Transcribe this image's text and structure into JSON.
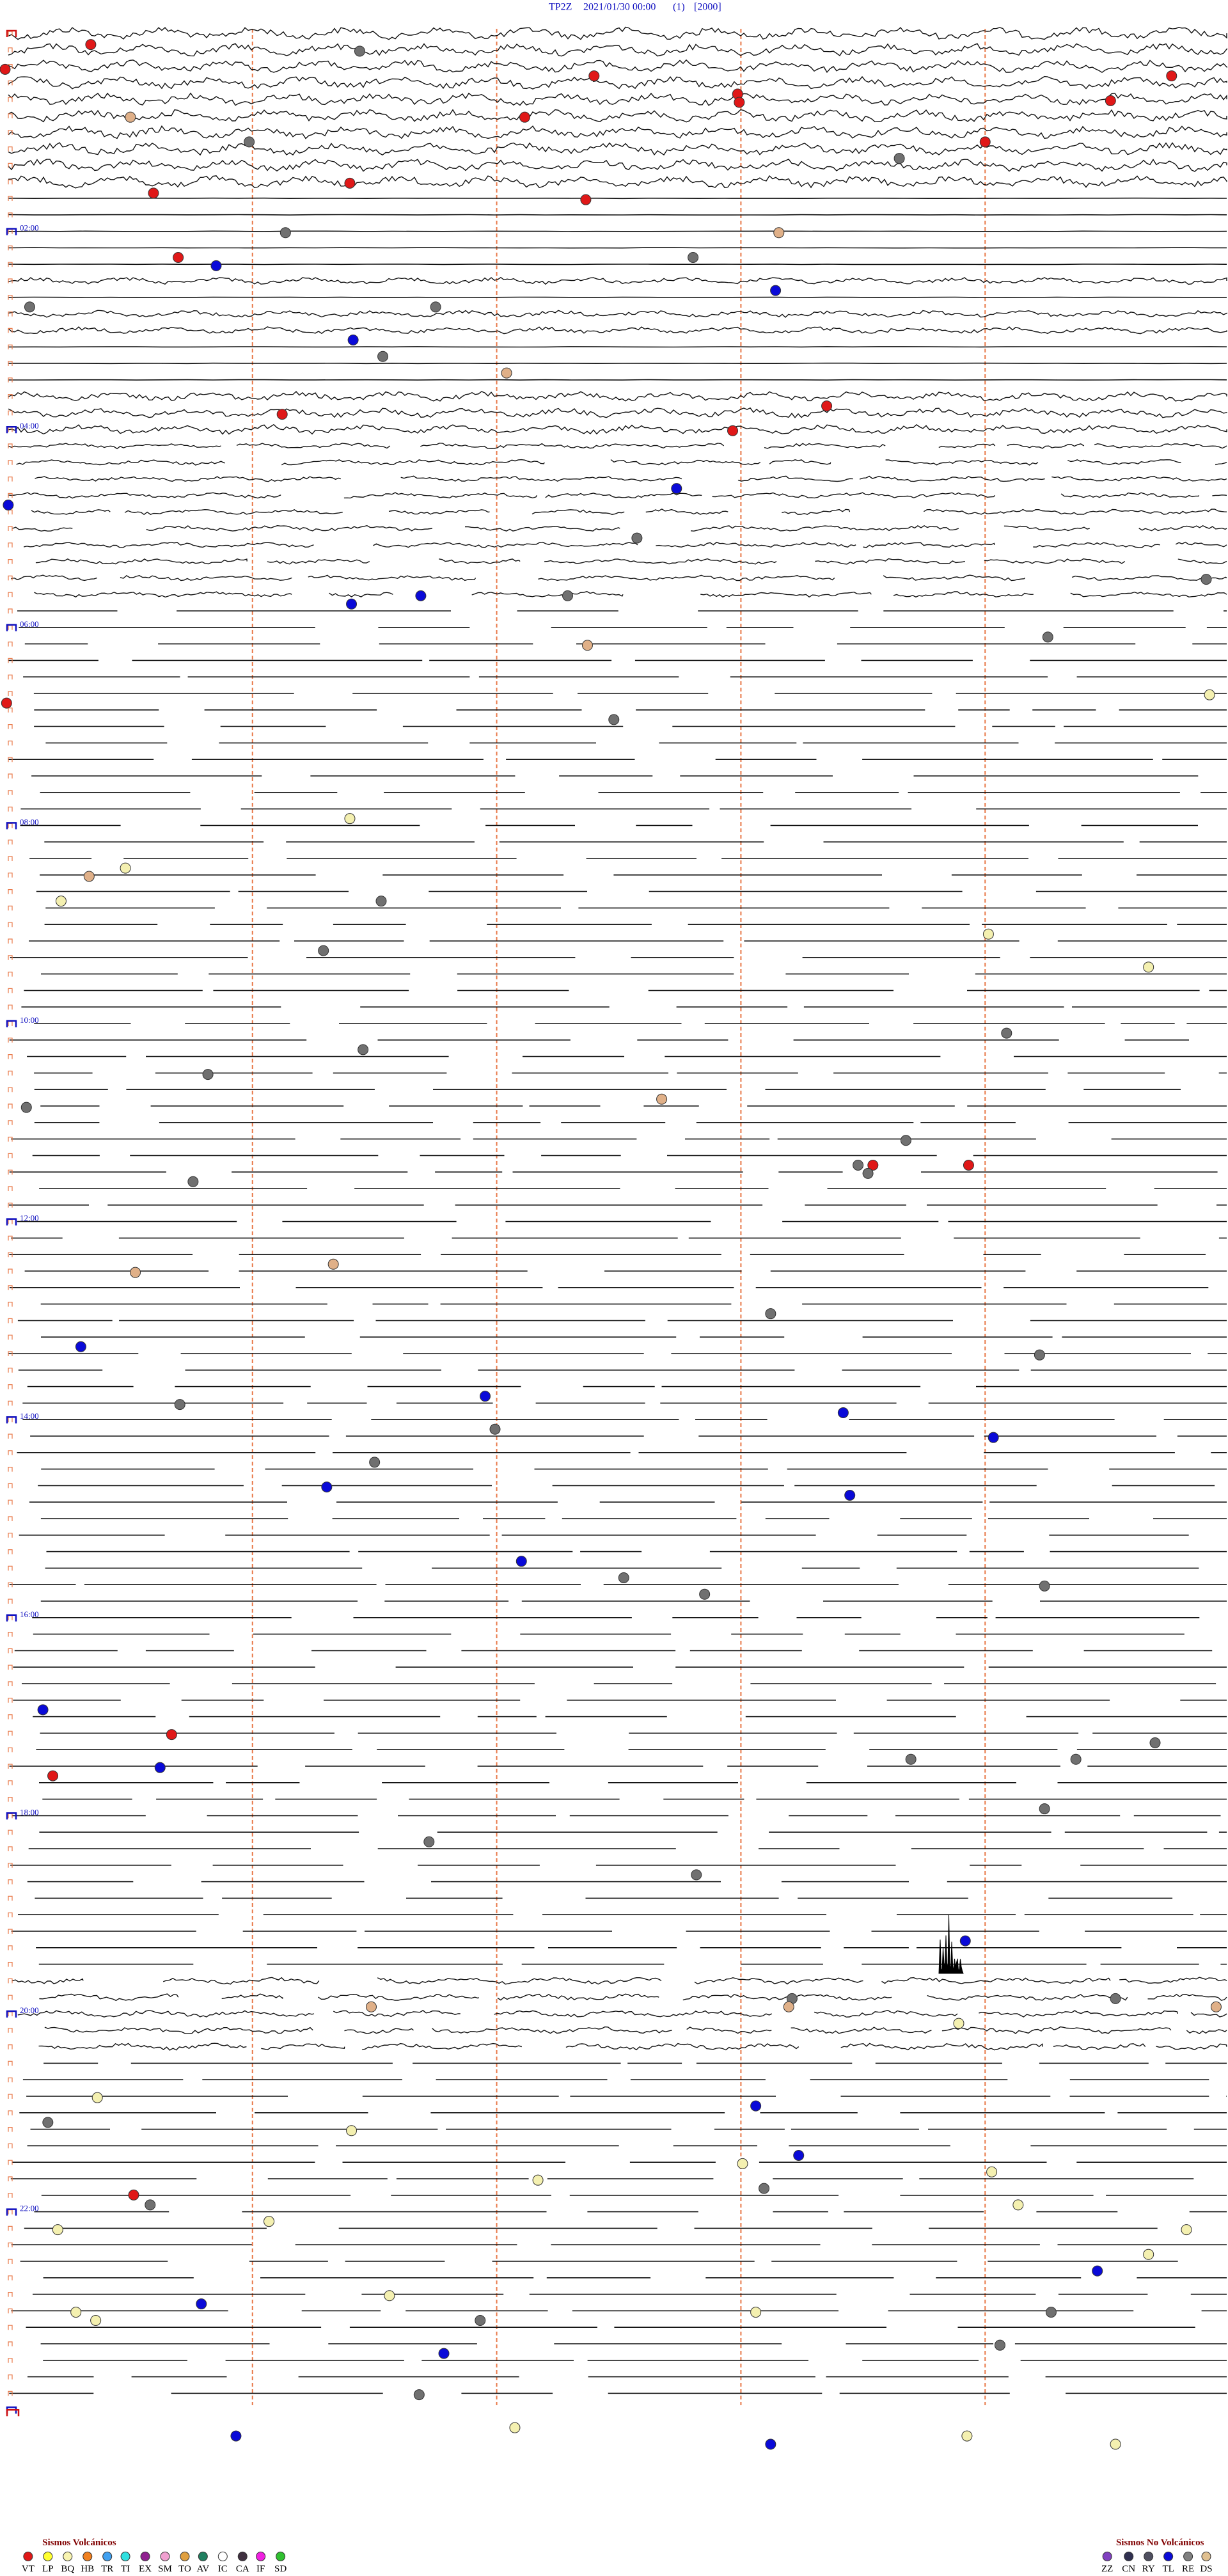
{
  "header": {
    "station": "TP2Z",
    "datetime": "2021/01/30 00:00",
    "channel": "(1)",
    "scale": "[2000]"
  },
  "hour_labels": [
    "02:00",
    "04:00",
    "06:00",
    "08:00",
    "10:00",
    "12:00",
    "14:00",
    "16:00",
    "18:00",
    "20:00",
    "22:00"
  ],
  "legend": {
    "volcanic": {
      "title": "Sismos Volcánicos",
      "codes": [
        "VT",
        "LP",
        "BQ",
        "HB",
        "TR",
        "TI",
        "EX",
        "SM",
        "TO",
        "AV",
        "IC",
        "CA",
        "IF",
        "SD"
      ]
    },
    "non_volcanic": {
      "title": "Sismos No Volcánicos",
      "codes": [
        "ZZ",
        "CN",
        "RY",
        "TL",
        "RE",
        "DS"
      ]
    }
  }
}
